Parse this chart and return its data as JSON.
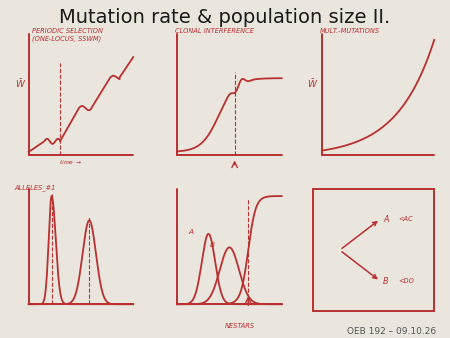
{
  "title": "Mutation rate & population size II.",
  "title_fontsize": 14,
  "bg_color": "#eae6de",
  "red_color": "#b83030",
  "footer": "OEB 192 – 09.10.26",
  "panel_labels": {
    "top_left": "PERIODIC SELECTION\n(ONE-LOCUS, SSWM)",
    "top_mid": "CLONAL INTERFERENCE",
    "top_right": "MULT.-MUTATIONS",
    "bot_left": "ALLELES_#1",
    "bot_mid": "NESTARS",
    "bot_right": ""
  }
}
